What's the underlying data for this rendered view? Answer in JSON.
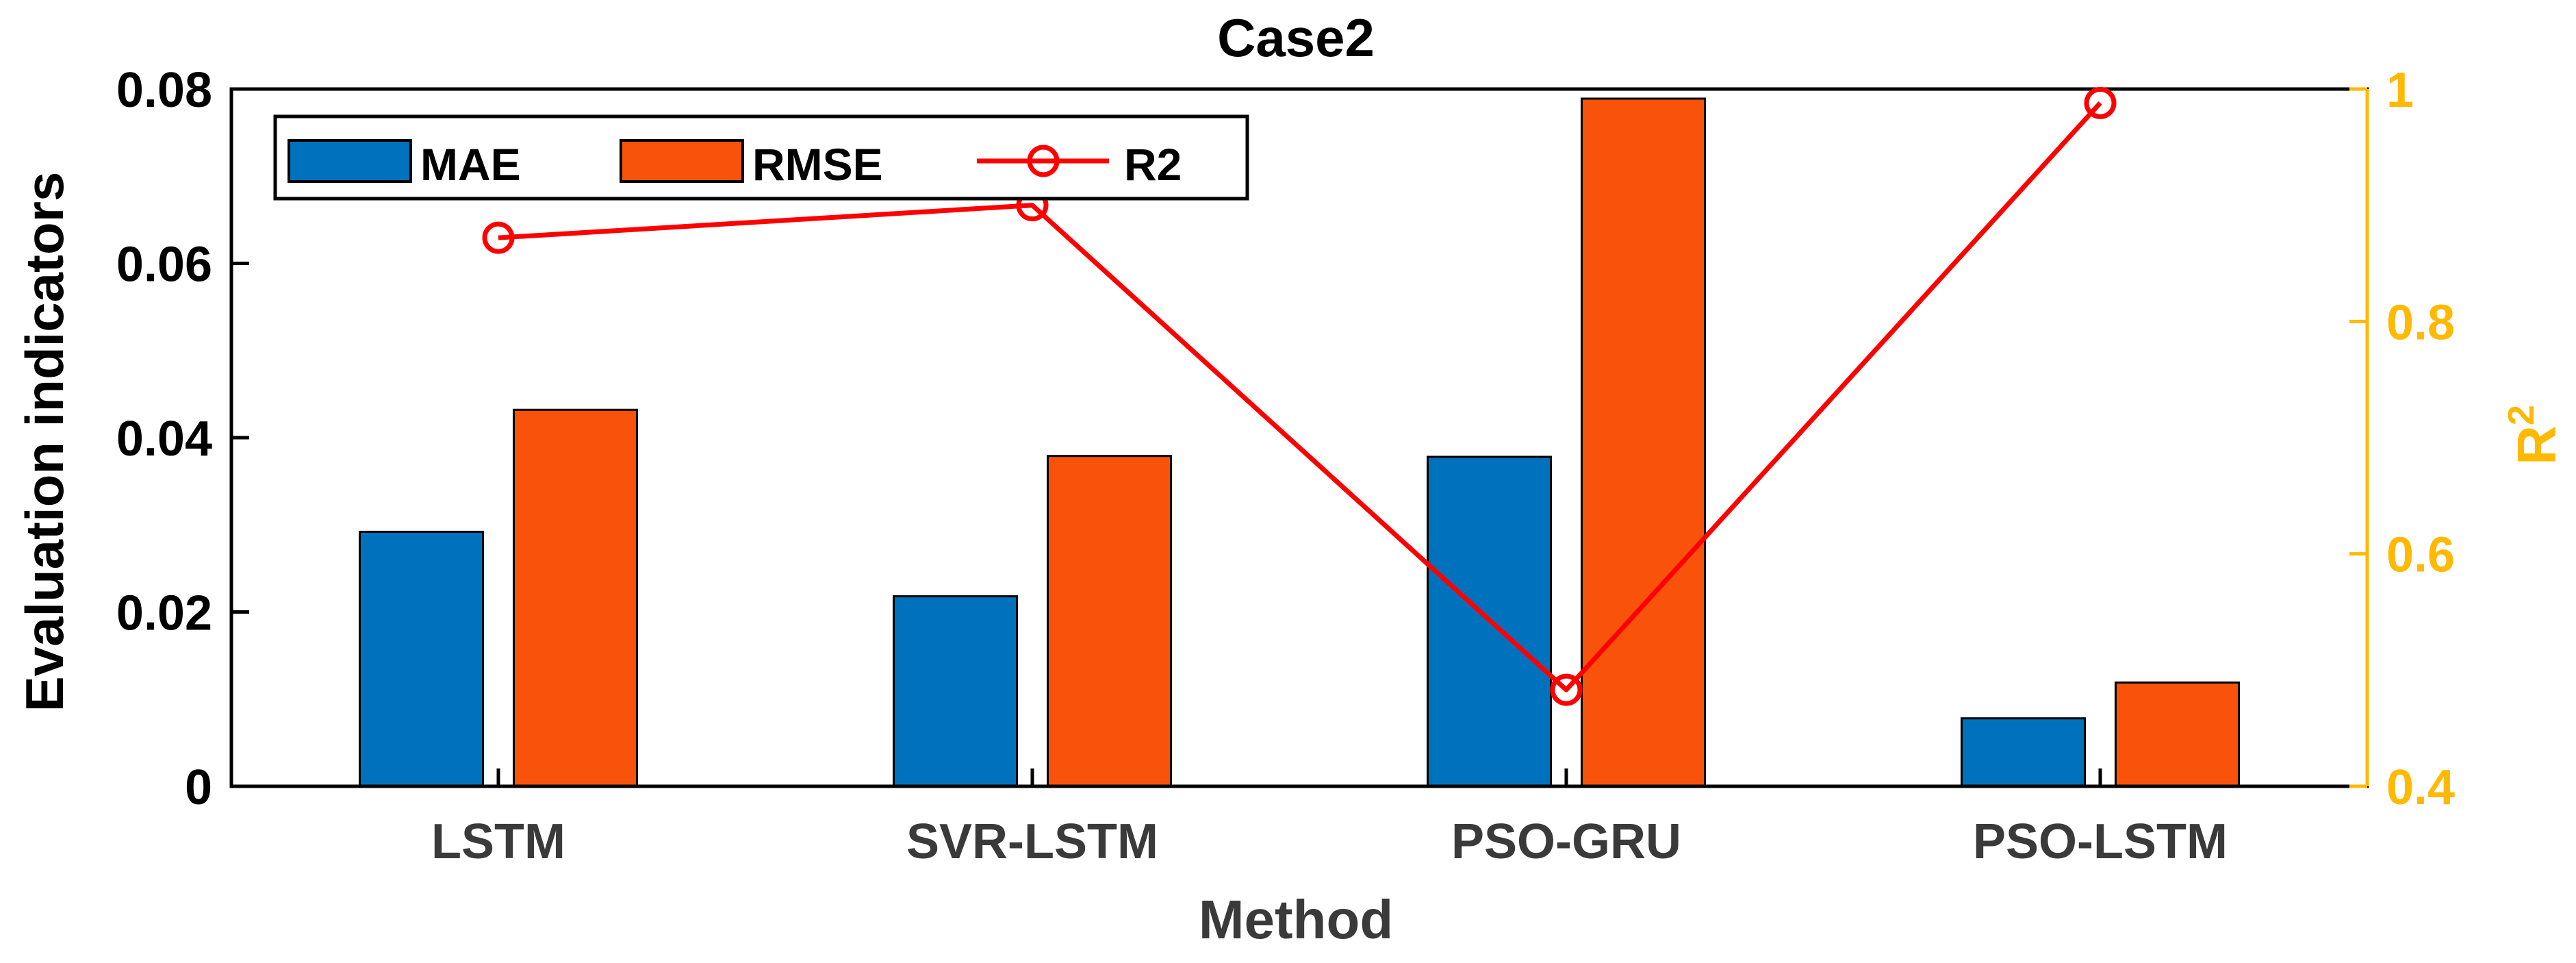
{
  "chart_data": {
    "type": "bar",
    "title": "Case2",
    "xlabel": "Method",
    "ylabel": "Evaluation indicators",
    "y2label": "R",
    "y2label_sup": "2",
    "categories": [
      "LSTM",
      "SVR-LSTM",
      "PSO-GRU",
      "PSO-LSTM"
    ],
    "series": [
      {
        "name": "MAE",
        "type": "bar",
        "axis": "left",
        "color": "#0072BD",
        "values": [
          0.0292,
          0.0218,
          0.0378,
          0.0078
        ]
      },
      {
        "name": "RMSE",
        "type": "bar",
        "axis": "left",
        "color": "#F9530B",
        "values": [
          0.0432,
          0.0379,
          0.0789,
          0.0119
        ]
      },
      {
        "name": "R2",
        "type": "line",
        "axis": "right",
        "color": "#FF0000",
        "marker": "circle",
        "values": [
          0.872,
          0.9,
          0.483,
          0.988
        ]
      }
    ],
    "ylim": [
      0,
      0.08
    ],
    "yticks": [
      "0",
      "0.02",
      "0.04",
      "0.06",
      "0.08"
    ],
    "ytick_values": [
      0,
      0.02,
      0.04,
      0.06,
      0.08
    ],
    "y2lim": [
      0.4,
      1.0
    ],
    "y2ticks": [
      "0.4",
      "0.6",
      "0.8",
      "1"
    ],
    "y2tick_values": [
      0.4,
      0.6,
      0.8,
      1.0
    ],
    "right_axis_color": "#FFB900",
    "legend": [
      "MAE",
      "RMSE",
      "R2"
    ],
    "legend_position": "top-left",
    "grid": false
  }
}
